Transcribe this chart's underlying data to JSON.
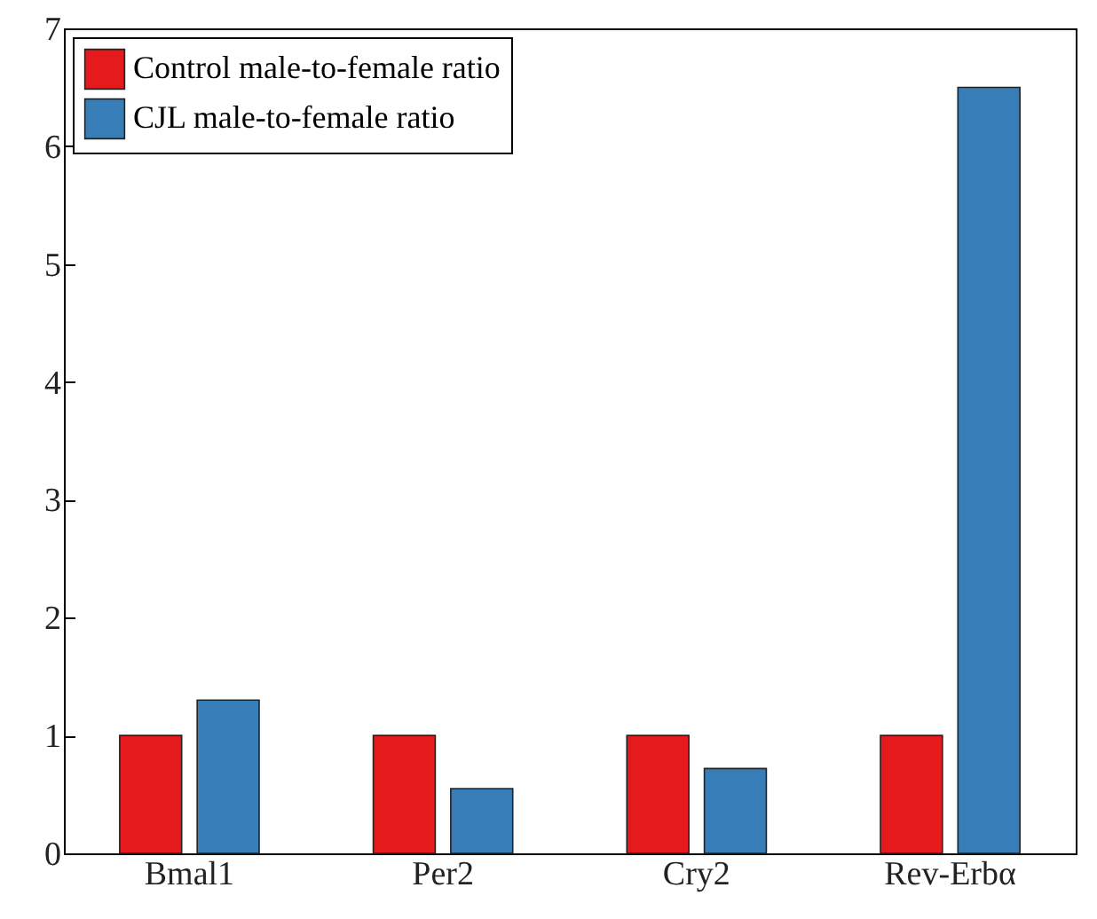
{
  "chart_data": {
    "type": "bar",
    "categories": [
      "Bmal1",
      "Per2",
      "Cry2",
      "Rev-Erbα"
    ],
    "series": [
      {
        "name": "Control male-to-female ratio",
        "color": "#e41a1c",
        "values": [
          1,
          1,
          1,
          1
        ]
      },
      {
        "name": "CJL male-to-female ratio",
        "color": "#377eb8",
        "values": [
          1.3,
          0.55,
          0.72,
          6.5
        ]
      }
    ],
    "ylim": [
      0,
      7
    ],
    "yticks": [
      0,
      1,
      2,
      3,
      4,
      5,
      6,
      7
    ],
    "grid": false,
    "legend": "top left"
  }
}
